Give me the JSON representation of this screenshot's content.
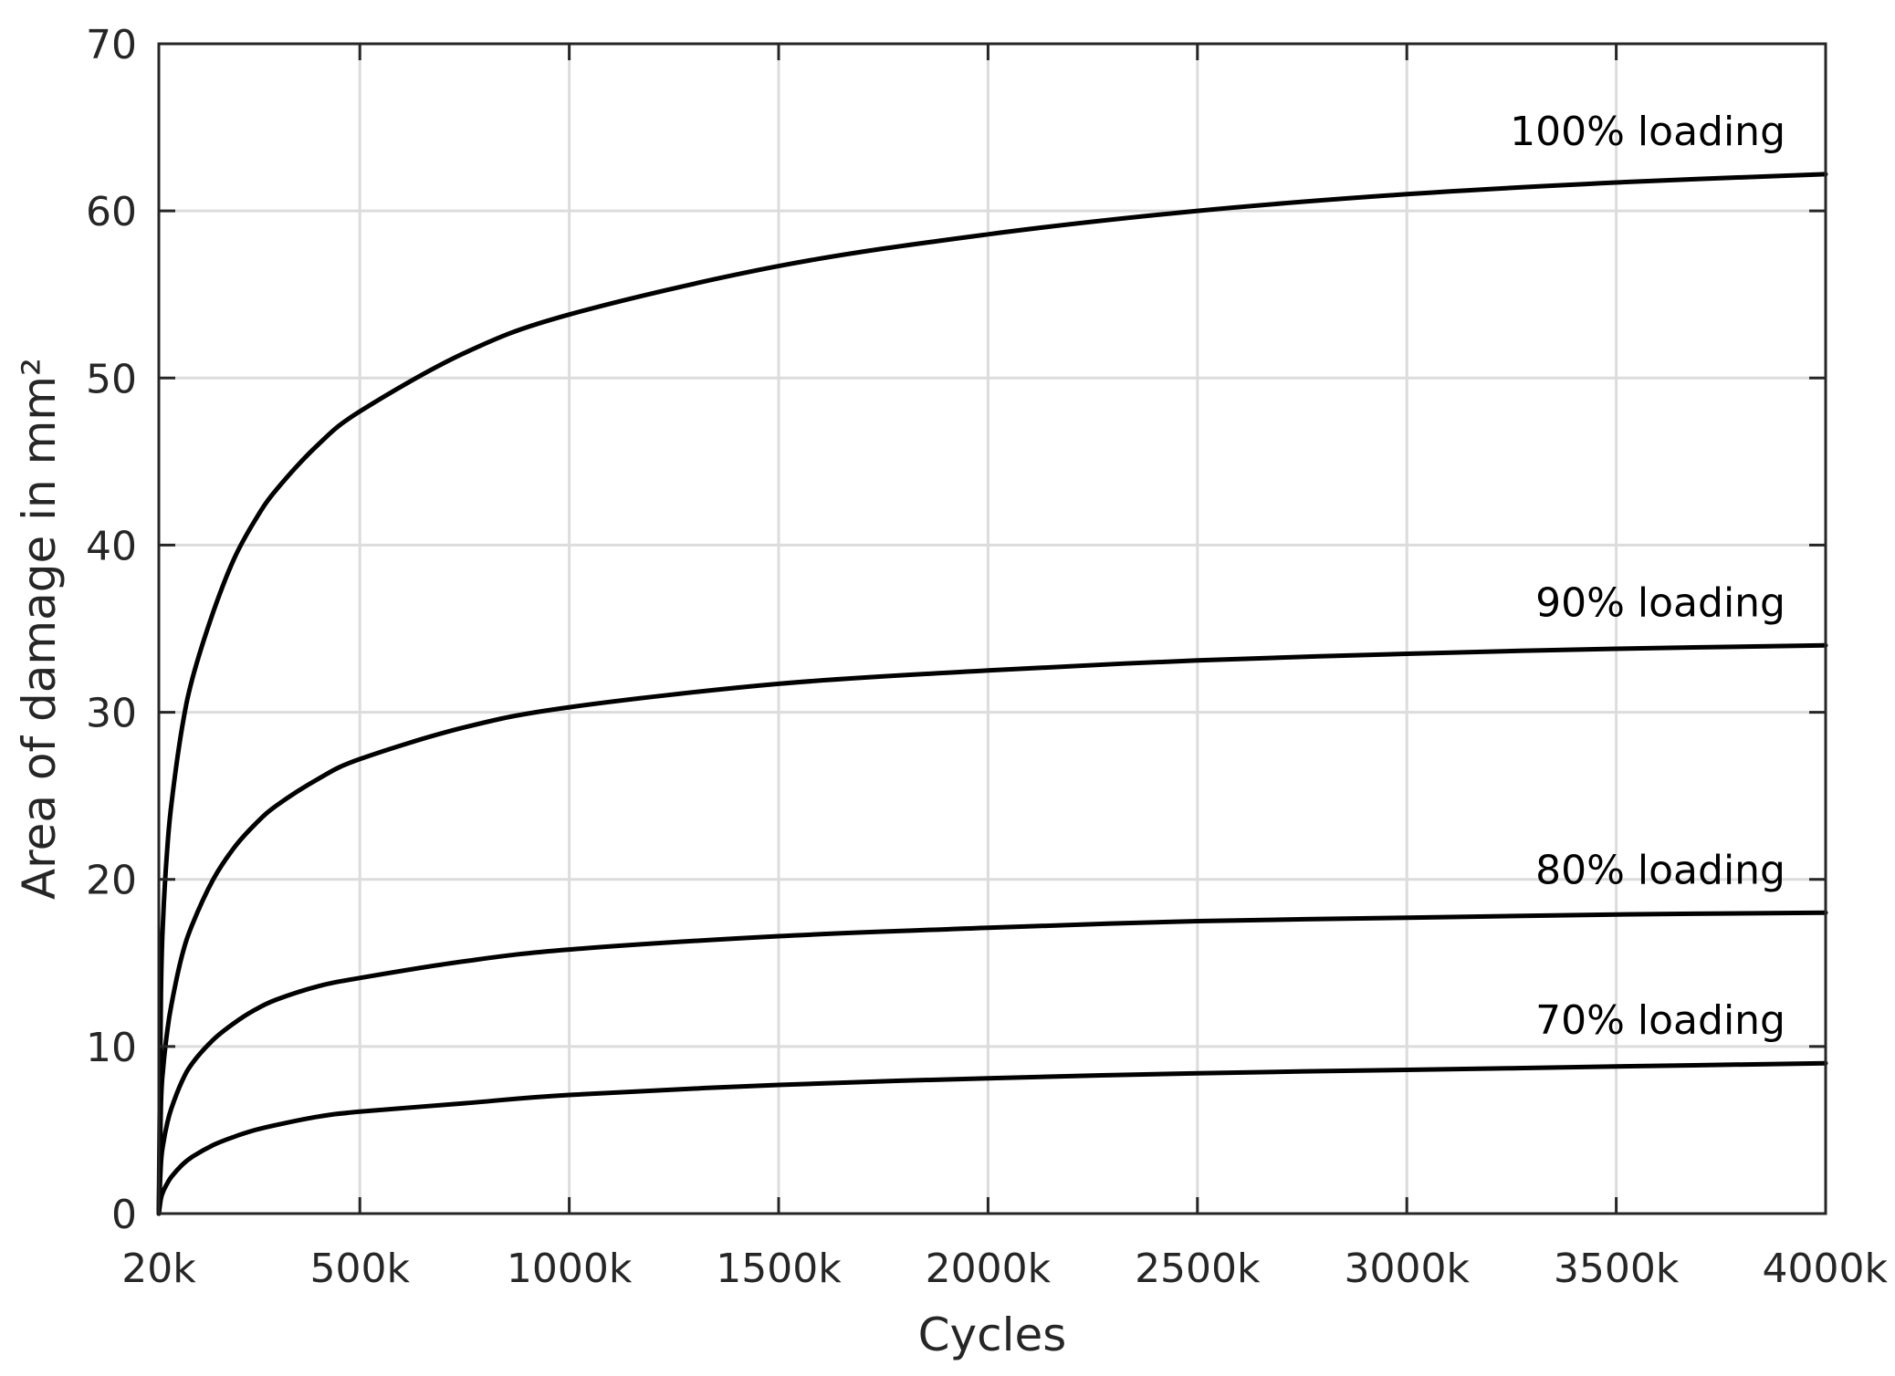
{
  "chart_data": {
    "type": "line",
    "title": "",
    "xlabel": "Cycles",
    "ylabel": "Area of damage in mm²",
    "xlim": [
      20000,
      4000000
    ],
    "ylim": [
      0,
      70
    ],
    "x_ticks": [
      20000,
      500000,
      1000000,
      1500000,
      2000000,
      2500000,
      3000000,
      3500000,
      4000000
    ],
    "x_tick_labels": [
      "20k",
      "500k",
      "1000k",
      "1500k",
      "2000k",
      "2500k",
      "3000k",
      "3500k",
      "4000k"
    ],
    "y_ticks": [
      0,
      10,
      20,
      30,
      40,
      50,
      60,
      70
    ],
    "y_tick_labels": [
      "0",
      "10",
      "20",
      "30",
      "40",
      "50",
      "60",
      "70"
    ],
    "grid": true,
    "legend": "none",
    "line_color": "#000000",
    "x": [
      20000,
      25000,
      30000,
      40000,
      50000,
      75000,
      100000,
      150000,
      200000,
      250000,
      300000,
      400000,
      500000,
      750000,
      1000000,
      1500000,
      2000000,
      2500000,
      3000000,
      3500000,
      4000000
    ],
    "series": [
      {
        "name": "100% loading",
        "values": [
          0,
          13.1,
          17.5,
          21.8,
          24.5,
          29.0,
          32.0,
          36.0,
          39.2,
          41.5,
          43.3,
          46.0,
          48.0,
          51.5,
          53.8,
          56.7,
          58.6,
          60.0,
          61.0,
          61.7,
          62.2
        ]
      },
      {
        "name": "90% loading",
        "values": [
          0,
          6.5,
          8.6,
          10.9,
          12.5,
          15.4,
          17.3,
          20.0,
          21.9,
          23.3,
          24.4,
          26.0,
          27.2,
          29.1,
          30.3,
          31.7,
          32.5,
          33.1,
          33.5,
          33.8,
          34.0
        ]
      },
      {
        "name": "80% loading",
        "values": [
          0,
          3.0,
          4.1,
          5.4,
          6.3,
          7.9,
          9.0,
          10.4,
          11.4,
          12.2,
          12.8,
          13.6,
          14.1,
          15.1,
          15.8,
          16.6,
          17.1,
          17.5,
          17.7,
          17.9,
          18.0
        ]
      },
      {
        "name": "70% loading",
        "values": [
          0,
          0.9,
          1.3,
          1.8,
          2.2,
          2.9,
          3.4,
          4.1,
          4.6,
          5.0,
          5.3,
          5.8,
          6.1,
          6.6,
          7.1,
          7.7,
          8.1,
          8.4,
          8.6,
          8.8,
          9.0
        ]
      }
    ]
  }
}
